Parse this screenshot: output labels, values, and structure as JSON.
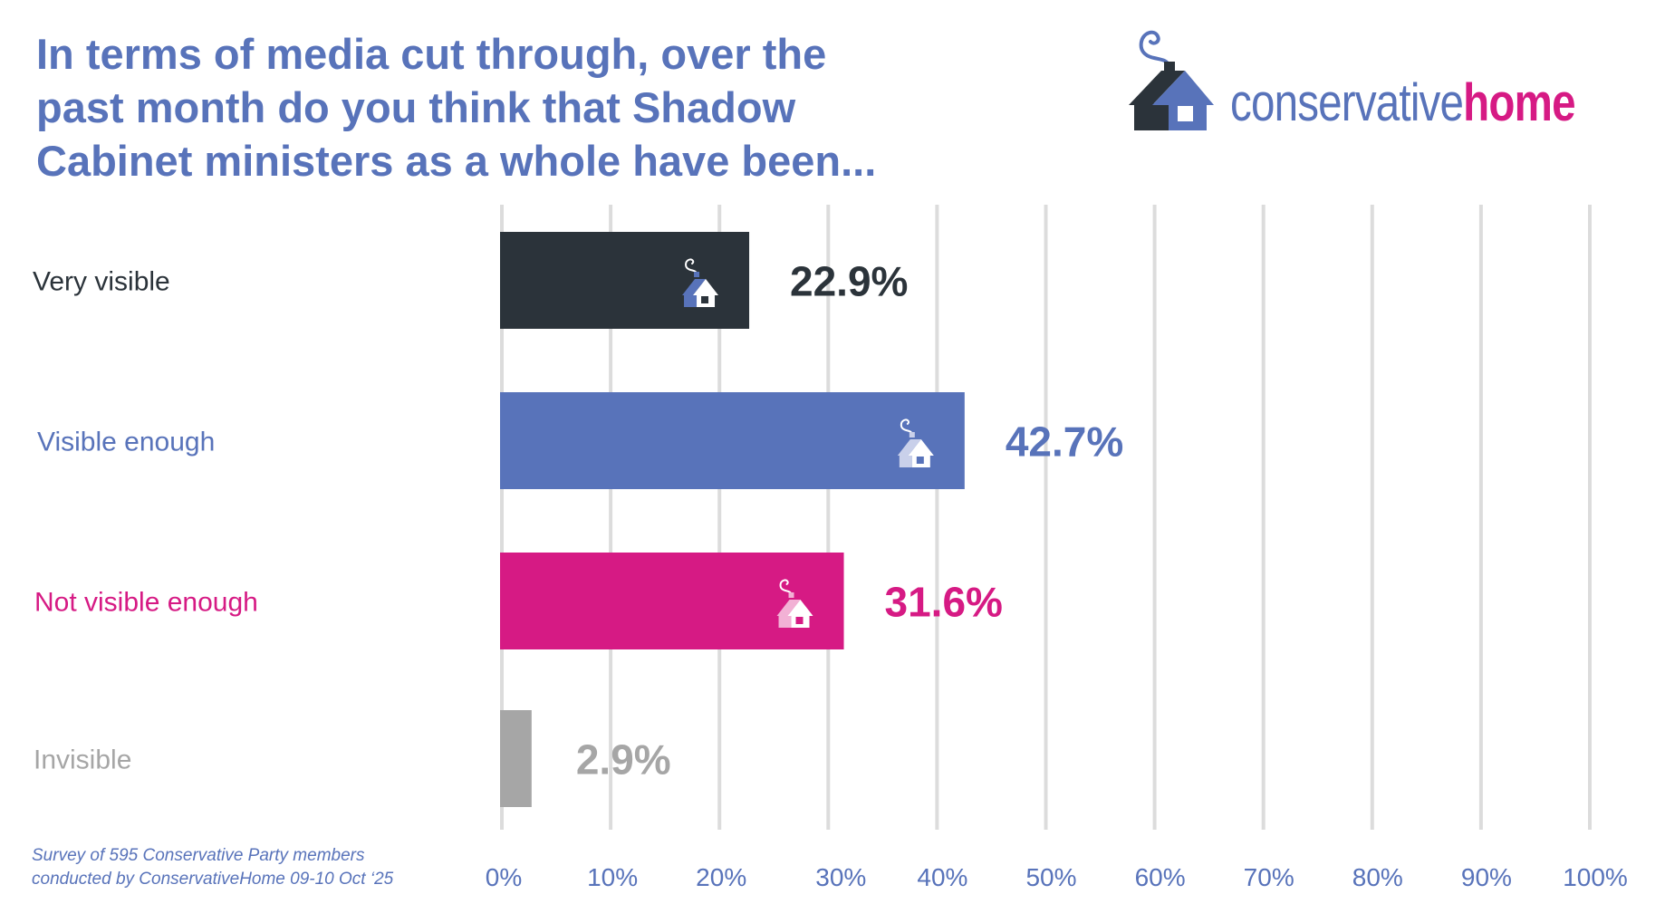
{
  "title_lines": [
    "In terms of media cut through, over the",
    "past month do you think that Shadow",
    "Cabinet ministers as a whole have been..."
  ],
  "logo": {
    "text_part1": "conservative",
    "text_part2": "home",
    "icon": "house-with-smoke-icon"
  },
  "footnote": {
    "line1": "Survey of 595 Conservative Party members",
    "line2": "conducted by ConservativeHome 09-10 Oct ‘25"
  },
  "colors": {
    "brand_blue": "#5873ba",
    "brand_pink": "#d61a84",
    "dark": "#2b333a",
    "gray": "#a6a6a6",
    "grid": "#dcdcdc"
  },
  "chart_data": {
    "type": "bar",
    "orientation": "horizontal",
    "title": "In terms of media cut through, over the past month do you think that Shadow Cabinet ministers as a whole have been...",
    "categories": [
      "Very visible",
      "Visible enough",
      "Not visible enough",
      "Invisible"
    ],
    "values": [
      22.9,
      42.7,
      31.6,
      2.9
    ],
    "value_labels": [
      "22.9%",
      "42.7%",
      "31.6%",
      "2.9%"
    ],
    "unit": "%",
    "bar_colors": [
      "#2b333a",
      "#5873ba",
      "#d61a84",
      "#a6a6a6"
    ],
    "label_colors": [
      "#2b333a",
      "#5873ba",
      "#d61a84",
      "#a6a6a6"
    ],
    "bar_icon_back_colors": [
      "#5873ba",
      "#c9d0ea",
      "#f2b1d5",
      null
    ],
    "xlim": [
      0,
      100
    ],
    "xticks": [
      0,
      10,
      20,
      30,
      40,
      50,
      60,
      70,
      80,
      90,
      100
    ],
    "xtick_labels": [
      "0%",
      "10%",
      "20%",
      "30%",
      "40%",
      "50%",
      "60%",
      "70%",
      "80%",
      "90%",
      "100%"
    ],
    "xlabel": "",
    "ylabel": "",
    "grid": "vertical",
    "legend": "none"
  }
}
